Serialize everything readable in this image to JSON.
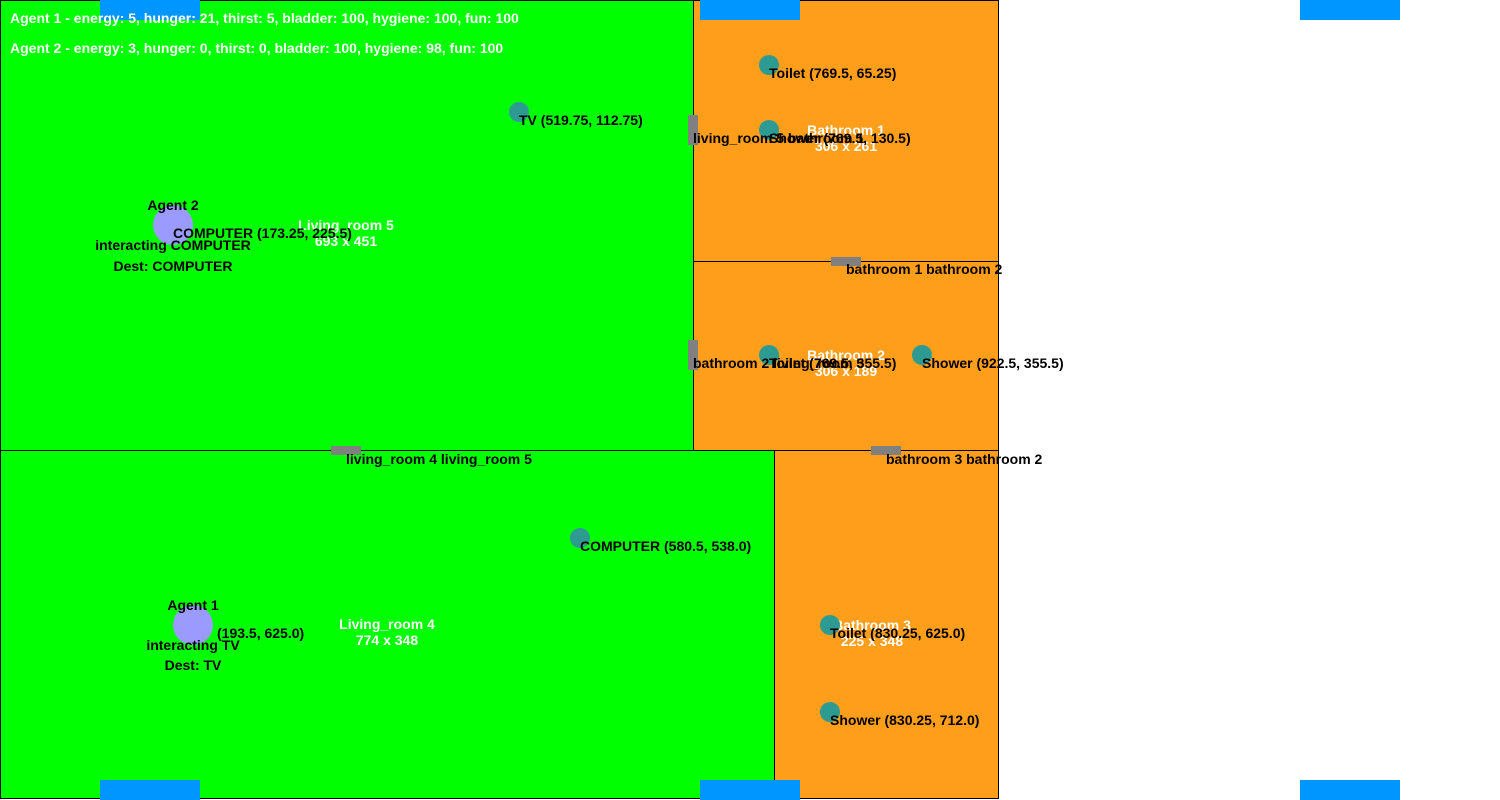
{
  "status": {
    "agent1": "Agent 1 - energy: 5, hunger: 21, thirst: 5, bladder: 100, hygiene: 100, fun: 100",
    "agent2": "Agent 2 - energy: 3, hunger: 0, thirst: 0, bladder: 100, hygiene: 98, fun: 100"
  },
  "colors": {
    "living_room": "#00ff00",
    "bathroom": "#ff9e1a",
    "window": "#0096ff",
    "door": "#808080",
    "object": "#2e9b93",
    "agent": "#9b9bff"
  },
  "rooms": {
    "living5": {
      "name": "Living_room 5",
      "size": "693 x 451"
    },
    "bath1": {
      "name": "Bathroom 1",
      "size": "306 x 261"
    },
    "bath2": {
      "name": "Bathroom 2",
      "size": "306 x 189"
    },
    "living4": {
      "name": "Living_room 4",
      "size": "774 x 348"
    },
    "bath3": {
      "name": "Bathroom 3",
      "size": "225 x 348"
    }
  },
  "doors": {
    "living5_bath1": "living_room 5 bathroom 1",
    "bath1_bath2": "bathroom 1 bathroom 2",
    "bath2_living5": "bathroom 2 living_room 5",
    "living4_living5": "living_room 4 living_room 5",
    "bath3_bath2": "bathroom 3 bathroom 2"
  },
  "objects": {
    "toilet1": "Toilet (769.5, 65.25)",
    "shower1": "Shower (769.5, 130.5)",
    "tv": "TV (519.75, 112.75)",
    "computer5": "COMPUTER (173.25, 225.5)",
    "toilet2": "Toilet (769.5, 355.5)",
    "shower2": "Shower (922.5, 355.5)",
    "computer4": "COMPUTER (580.5, 538.0)",
    "tv4": "(193.5, 625.0)",
    "toilet3": "Toilet (830.25, 625.0)",
    "shower3": "Shower (830.25, 712.0)"
  },
  "agents": {
    "agent2": {
      "name": "Agent 2",
      "action": "interacting COMPUTER",
      "dest": "Dest: COMPUTER"
    },
    "agent1": {
      "name": "Agent 1",
      "action": "interacting TV",
      "dest": "Dest: TV"
    }
  }
}
